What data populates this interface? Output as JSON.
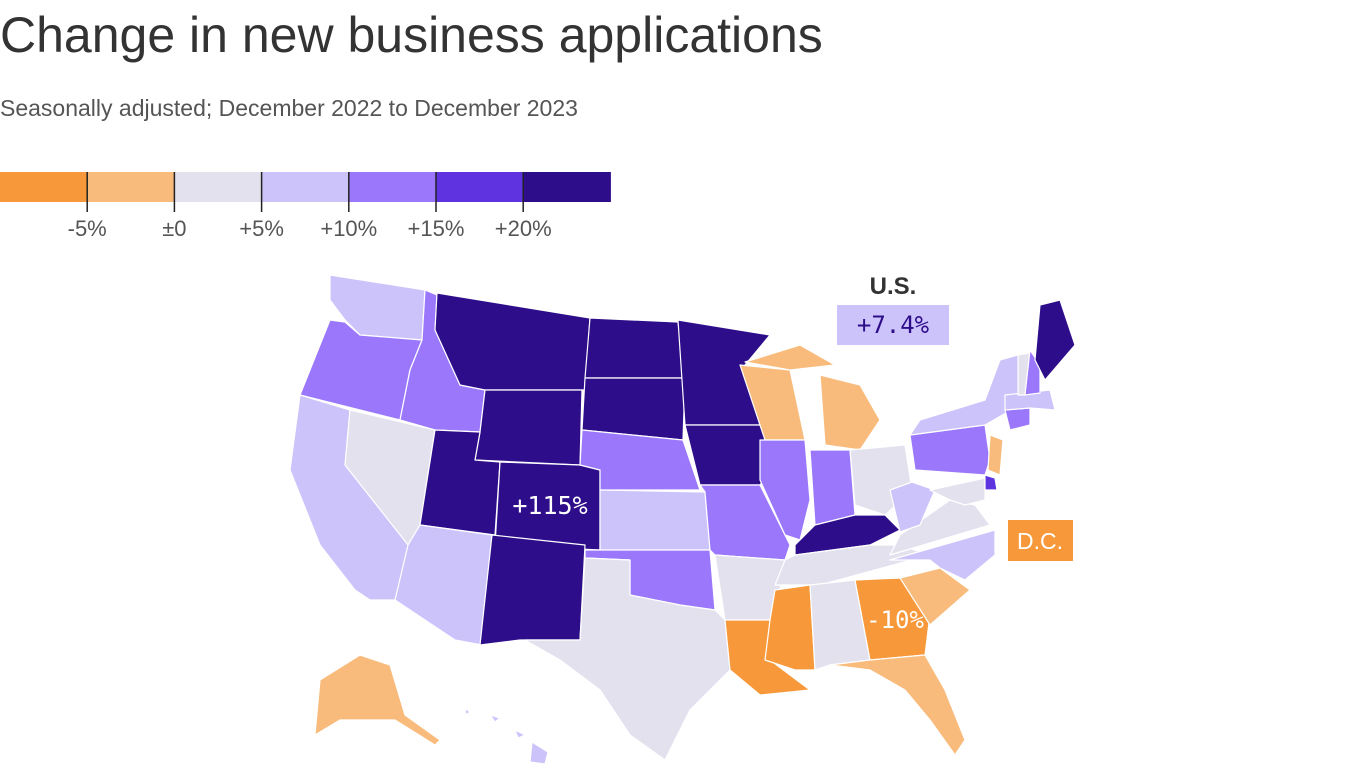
{
  "header": {
    "title": "Change in new business applications",
    "subtitle": "Seasonally adjusted; December 2022 to December 2023"
  },
  "legend": {
    "colors": [
      "#f7993a",
      "#f8bb7c",
      "#e4e1ef",
      "#ccc3fb",
      "#9b78fb",
      "#5f33e0",
      "#2e0d8a"
    ],
    "ticks": [
      "-5%",
      "±0",
      "+5%",
      "+10%",
      "+15%",
      "+20%"
    ]
  },
  "annotations": {
    "us_label": "U.S.",
    "us_value": "+7.4%",
    "dc_label": "D.C.",
    "high_value": "+115%",
    "low_value": "-10%"
  }
}
